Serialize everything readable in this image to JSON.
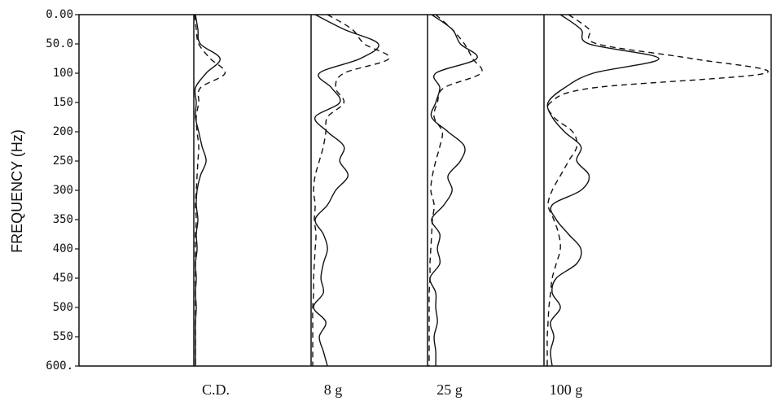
{
  "chart_data": {
    "type": "line",
    "y_label": "FREQUENCY (Hz)",
    "ylim": [
      0,
      600
    ],
    "yticks": [
      {
        "value": 0,
        "label": "0.00"
      },
      {
        "value": 50,
        "label": "50.0"
      },
      100,
      150,
      200,
      250,
      300,
      350,
      400,
      450,
      500,
      550,
      {
        "value": 600,
        "label": "600."
      }
    ],
    "xlim": [
      0,
      143
    ],
    "color": "#111111",
    "frequencies": [
      0,
      25,
      50,
      75,
      100,
      125,
      150,
      175,
      200,
      225,
      250,
      275,
      300,
      325,
      350,
      375,
      400,
      425,
      450,
      475,
      500,
      525,
      550,
      575,
      600
    ],
    "panels": [
      {
        "label": "C.D.",
        "series": [
          {
            "style": "solid",
            "values": [
              2,
              5,
              8,
              32,
              15,
              2,
              3,
              2,
              6,
              10,
              15,
              8,
              4,
              3,
              5,
              3,
              4,
              2,
              3,
              2,
              3,
              2,
              2,
              2,
              2
            ]
          },
          {
            "style": "dashed",
            "values": [
              1,
              3,
              6,
              20,
              38,
              8,
              6,
              3,
              4,
              6,
              5,
              4,
              3,
              2,
              3,
              2,
              2,
              2,
              2,
              2,
              2,
              2,
              2,
              2,
              2
            ]
          }
        ]
      },
      {
        "label": "8 g",
        "series": [
          {
            "style": "solid",
            "values": [
              5,
              40,
              82,
              60,
              10,
              25,
              35,
              5,
              20,
              40,
              35,
              45,
              30,
              20,
              5,
              15,
              20,
              15,
              12,
              15,
              3,
              18,
              10,
              15,
              20
            ]
          },
          {
            "style": "dashed",
            "values": [
              20,
              50,
              65,
              95,
              40,
              30,
              40,
              20,
              18,
              15,
              10,
              5,
              3,
              5,
              4,
              6,
              5,
              4,
              3,
              3,
              2,
              2,
              2,
              2,
              2
            ]
          }
        ]
      },
      {
        "label": "25 g",
        "series": [
          {
            "style": "solid",
            "values": [
              5,
              30,
              40,
              60,
              10,
              15,
              10,
              5,
              25,
              45,
              40,
              25,
              30,
              20,
              5,
              15,
              12,
              15,
              3,
              10,
              10,
              12,
              8,
              10,
              10
            ]
          },
          {
            "style": "dashed",
            "values": [
              10,
              30,
              45,
              55,
              65,
              20,
              12,
              8,
              18,
              15,
              10,
              6,
              4,
              8,
              6,
              5,
              4,
              3,
              3,
              2,
              2,
              2,
              2,
              2,
              2
            ]
          }
        ]
      },
      {
        "label": "100 g",
        "series": [
          {
            "style": "solid",
            "values": [
              20,
              45,
              55,
              140,
              60,
              25,
              5,
              10,
              25,
              45,
              40,
              55,
              45,
              10,
              15,
              30,
              45,
              40,
              15,
              10,
              20,
              8,
              12,
              8,
              10
            ]
          },
          {
            "style": "dashed",
            "values": [
              30,
              55,
              65,
              180,
              270,
              60,
              8,
              12,
              35,
              40,
              30,
              20,
              10,
              5,
              12,
              18,
              20,
              15,
              10,
              8,
              6,
              5,
              4,
              4,
              4
            ]
          }
        ]
      }
    ]
  }
}
